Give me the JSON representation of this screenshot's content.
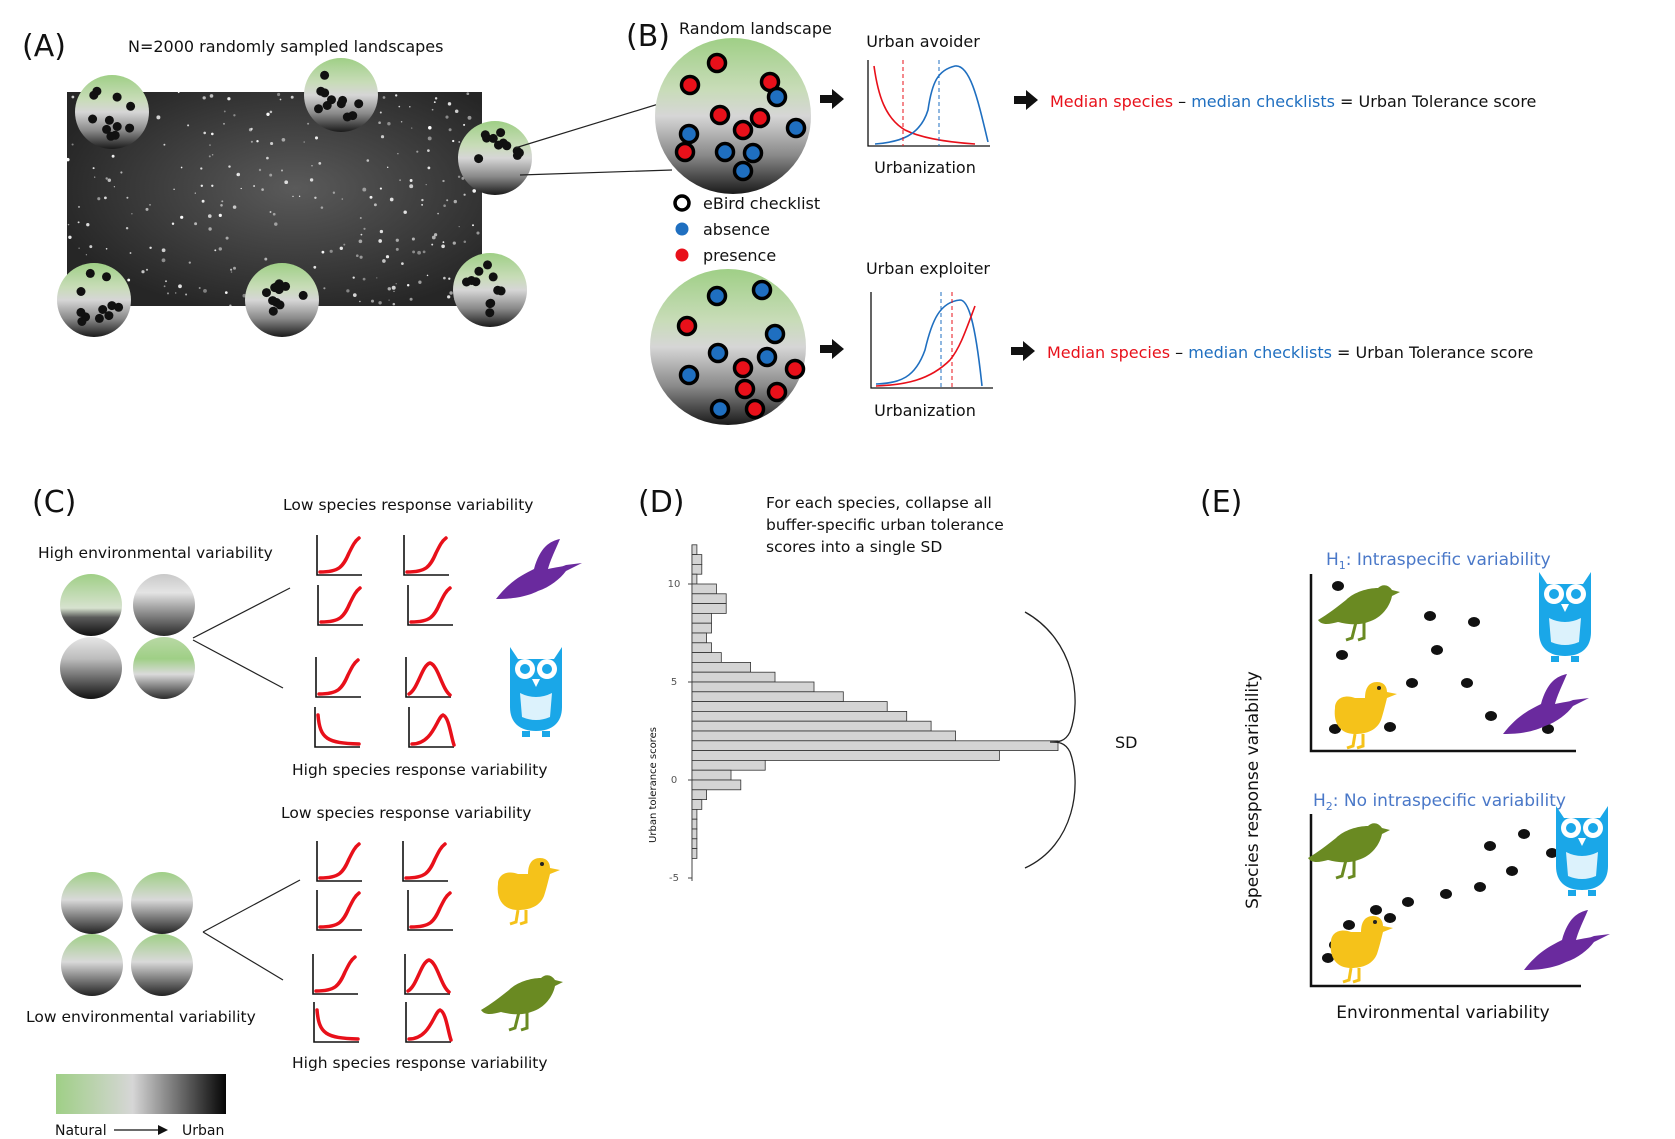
{
  "colors": {
    "natural_green": "#9fcf86",
    "urban_black": "#0a0a0a",
    "presence_red": "#e8101a",
    "absence_blue": "#1f6fc0",
    "hypothesis_blue": "#4a78c8",
    "owl_blue": "#1aa7e8",
    "hummingbird_purple": "#6a2a9e",
    "duck_yellow": "#f5c21a",
    "sparrow_olive": "#6a8a22"
  },
  "icons": [
    "arrow-right-icon",
    "hummingbird-icon",
    "owl-icon",
    "duck-icon",
    "sparrow-icon",
    "brace-icon"
  ],
  "panelA": {
    "label": "(A)",
    "title": "N=2000 randomly sampled landscapes"
  },
  "panelB": {
    "label": "(B)",
    "title": "Random landscape",
    "legend": [
      "eBird checklist",
      "absence",
      "presence"
    ],
    "avoider_title": "Urban avoider",
    "exploiter_title": "Urban exploiter",
    "xlabel": "Urbanization",
    "formula_species": "Median species",
    "formula_minus": " – ",
    "formula_checklists": "median checklists",
    "formula_result": " = Urban Tolerance score"
  },
  "panelC": {
    "label": "(C)",
    "high_env": "High environmental variability",
    "low_env": "Low environmental variability",
    "low_resp_1": "Low species response variability",
    "high_resp_1": "High species response variability",
    "low_resp_2": "Low species response variability",
    "high_resp_2": "High species response variability",
    "scale_left": "Natural",
    "scale_right": "Urban"
  },
  "panelD": {
    "label": "(D)",
    "text": [
      "For each species, collapse all",
      "buffer-specific urban tolerance",
      "scores into a single SD"
    ],
    "ylabel": "Urban tolerance scores",
    "sd_label": "SD",
    "chart_data": {
      "type": "bar",
      "orientation": "horizontal",
      "y_ticks": [
        "10",
        "5",
        "0",
        "-5"
      ],
      "ylim": [
        -5,
        12
      ],
      "bins_start": [
        11.5,
        11.0,
        10.5,
        10.0,
        9.5,
        9.0,
        8.5,
        8.0,
        7.5,
        7.0,
        6.5,
        6.0,
        5.5,
        5.0,
        4.5,
        4.0,
        3.5,
        3.0,
        2.5,
        2.0,
        1.5,
        1.0,
        0.5,
        0.0,
        -0.5,
        -1.0,
        -1.5,
        -2.0,
        -2.5,
        -3.0,
        -3.5,
        -4.0
      ],
      "values": [
        1,
        2,
        2,
        1,
        5,
        7,
        7,
        4,
        4,
        3,
        4,
        6,
        12,
        17,
        25,
        31,
        40,
        44,
        49,
        54,
        75,
        63,
        15,
        8,
        10,
        3,
        2,
        1,
        1,
        1,
        1,
        1
      ]
    }
  },
  "panelE": {
    "label": "(E)",
    "h1_prefix": "H",
    "h1_sub": "1",
    "h1_text": ": Intraspecific variability",
    "h2_prefix": "H",
    "h2_sub": "2",
    "h2_text": ": No intraspecific variability",
    "ylabel": "Species response variability",
    "xlabel": "Environmental variability"
  }
}
